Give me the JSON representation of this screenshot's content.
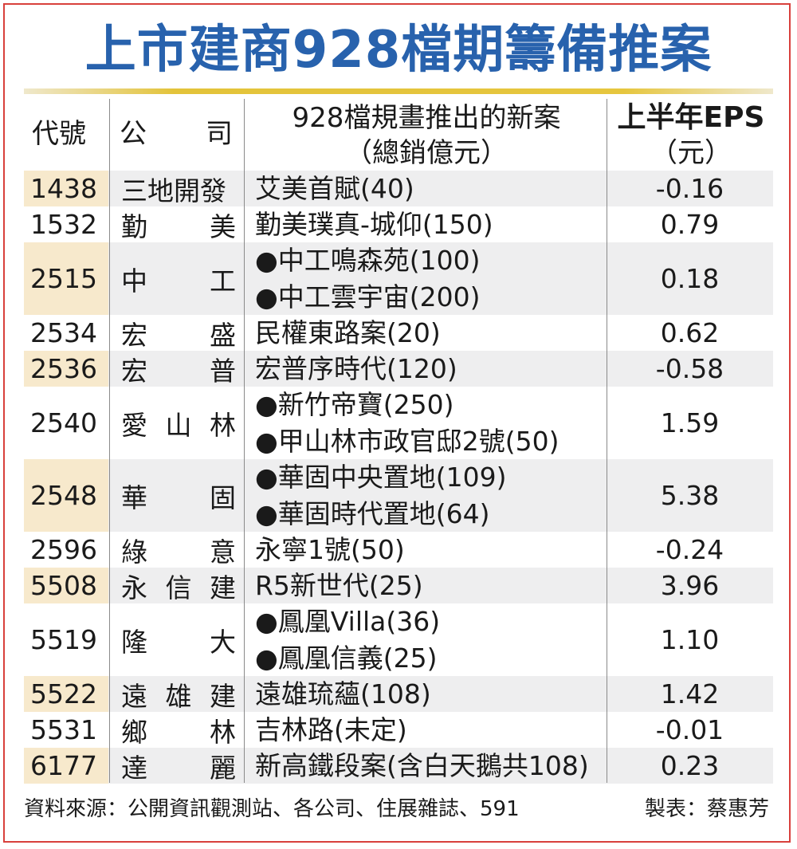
{
  "title": "上市建商928檔期籌備推案",
  "headers": {
    "code": "代號",
    "company_a": "公",
    "company_b": "司",
    "new_project_line1": "928檔規畫推出的新案",
    "new_project_line2": "（總銷億元）",
    "eps_line1": "上半年EPS",
    "eps_line2": "（元）"
  },
  "colors": {
    "title": "#2862ad",
    "title_bar": "#e3c33a",
    "border": "#d8403c",
    "code_shade": "#f7e9cc",
    "row_shade": "#eeeeef"
  },
  "chart_data": {
    "type": "table",
    "title": "上市建商928檔期籌備推案",
    "columns": [
      "代號",
      "公司",
      "928檔規畫推出的新案（總銷億元）",
      "上半年EPS（元）"
    ],
    "rows": [
      {
        "code": "1438",
        "company": [
          "三地開發"
        ],
        "projects": [
          "艾美首賦(40)"
        ],
        "eps": "-0.16"
      },
      {
        "code": "1532",
        "company": [
          "勤",
          "美"
        ],
        "projects": [
          "勤美璞真-城仰(150)"
        ],
        "eps": "0.79"
      },
      {
        "code": "2515",
        "company": [
          "中",
          "工"
        ],
        "projects": [
          "●中工鳴森苑(100)",
          "●中工雲宇宙(200)"
        ],
        "eps": "0.18"
      },
      {
        "code": "2534",
        "company": [
          "宏",
          "盛"
        ],
        "projects": [
          "民權東路案(20)"
        ],
        "eps": "0.62"
      },
      {
        "code": "2536",
        "company": [
          "宏",
          "普"
        ],
        "projects": [
          "宏普序時代(120)"
        ],
        "eps": "-0.58"
      },
      {
        "code": "2540",
        "company": [
          "愛",
          "山",
          "林"
        ],
        "projects": [
          "●新竹帝寶(250)",
          "●甲山林市政官邸2號(50)"
        ],
        "eps": "1.59"
      },
      {
        "code": "2548",
        "company": [
          "華",
          "固"
        ],
        "projects": [
          "●華固中央置地(109)",
          "●華固時代置地(64)"
        ],
        "eps": "5.38"
      },
      {
        "code": "2596",
        "company": [
          "綠",
          "意"
        ],
        "projects": [
          "永寧1號(50)"
        ],
        "eps": "-0.24"
      },
      {
        "code": "5508",
        "company": [
          "永",
          "信",
          "建"
        ],
        "projects": [
          "R5新世代(25)"
        ],
        "eps": "3.96"
      },
      {
        "code": "5519",
        "company": [
          "隆",
          "大"
        ],
        "projects": [
          "●鳳凰Villa(36)",
          "●鳳凰信義(25)"
        ],
        "eps": "1.10"
      },
      {
        "code": "5522",
        "company": [
          "遠",
          "雄",
          "建"
        ],
        "projects": [
          "遠雄琉蘊(108)"
        ],
        "eps": "1.42"
      },
      {
        "code": "5531",
        "company": [
          "鄉",
          "林"
        ],
        "projects": [
          "吉林路(未定)"
        ],
        "eps": "-0.01"
      },
      {
        "code": "6177",
        "company": [
          "達",
          "麗"
        ],
        "projects": [
          "新高鐵段案(含白天鵝共108)"
        ],
        "eps": "0.23"
      }
    ]
  },
  "footer": {
    "source": "資料來源：公開資訊觀測站、各公司、住展雜誌、591",
    "credit": "製表：蔡惠芳"
  }
}
